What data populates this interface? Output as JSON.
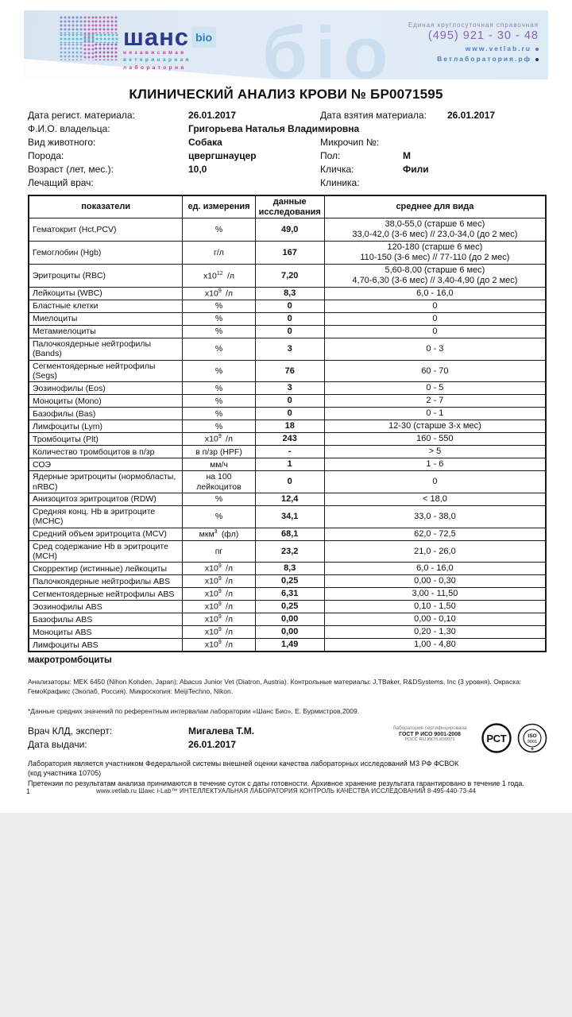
{
  "header": {
    "watermark": "бio",
    "brand": {
      "name": "шанс",
      "bio": "bio",
      "tagline1": "независимая",
      "tagline2": "ветеринарная",
      "tagline3": "лаборатория"
    },
    "contact": {
      "hotline_label": "Единая круглосуточная справочная",
      "phone": "(495)  921 - 30 - 48",
      "site1": "www.vetlab.ru",
      "site2": "Ветлаборатория.рф"
    }
  },
  "title": "КЛИНИЧЕСКИЙ АНАЛИЗ КРОВИ  № БР0071595",
  "info": {
    "left": [
      {
        "label": "Дата регист. материала:",
        "value": "26.01.2017"
      },
      {
        "label": "Ф.И.О. владельца:",
        "value": "Григорьева Наталья Владимировна"
      },
      {
        "label": "Вид животного:",
        "value": "Собака"
      },
      {
        "label": "Порода:",
        "value": "цвергшнауцер"
      },
      {
        "label": "Возраст (лет, мес.):",
        "value": "10,0"
      },
      {
        "label": "Лечащий врач:",
        "value": ""
      }
    ],
    "right": [
      {
        "label": "Дата взятия материала:",
        "value": "26.01.2017"
      },
      {
        "label": "",
        "value": ""
      },
      {
        "label": "Микрочип №:",
        "value": ""
      },
      {
        "label": "Пол:",
        "value": "М"
      },
      {
        "label": "Кличка:",
        "value": "Фили"
      },
      {
        "label": "Клиника:",
        "value": ""
      }
    ]
  },
  "table": {
    "headers": [
      "показатели",
      "ед. измерения",
      "данные исследования",
      "среднее для вида"
    ],
    "rows": [
      {
        "name": "Гематокрит (Hct,PCV)",
        "unit": {
          "base": "%"
        },
        "value": "49,0",
        "range": "38,0-55,0 (старше 6 мес)\n33,0-42,0 (3-6 мес)  //  23,0-34,0 (до 2 мес)"
      },
      {
        "name": "Гемоглобин (Hgb)",
        "unit": {
          "base": "г/л"
        },
        "value": "167",
        "range": "120-180 (старше 6 мес)\n110-150 (3-6 мес)  //  77-110  (до 2 мес)"
      },
      {
        "name": "Эритроциты (RBC)",
        "unit": {
          "base": "х10",
          "sup": "12",
          "rest": "/л"
        },
        "value": "7,20",
        "range": "5,60-8,00 (старше 6 мес)\n4,70-6,30 (3-6 мес)  //  3,40-4,90 (до 2 мес)"
      },
      {
        "name": "Лейкоциты (WBC)",
        "unit": {
          "base": "х10",
          "sup": "9",
          "rest": "/л"
        },
        "value": "8,3",
        "range": "6,0 - 16,0"
      },
      {
        "name": "Бластные клетки",
        "unit": {
          "base": "%"
        },
        "value": "0",
        "range": "0"
      },
      {
        "name": "Миелоциты",
        "unit": {
          "base": "%"
        },
        "value": "0",
        "range": "0"
      },
      {
        "name": "Метамиелоциты",
        "unit": {
          "base": "%"
        },
        "value": "0",
        "range": "0"
      },
      {
        "name": "Палочкоядерные нейтрофилы (Bands)",
        "unit": {
          "base": "%"
        },
        "value": "3",
        "range": "0 - 3"
      },
      {
        "name": "Сегментоядерные нейтрофилы (Segs)",
        "unit": {
          "base": "%"
        },
        "value": "76",
        "range": "60 - 70"
      },
      {
        "name": "Эозинофилы (Eos)",
        "unit": {
          "base": "%"
        },
        "value": "3",
        "range": "0 - 5"
      },
      {
        "name": "Моноциты (Mono)",
        "unit": {
          "base": "%"
        },
        "value": "0",
        "range": "2 - 7"
      },
      {
        "name": "Базофилы (Bas)",
        "unit": {
          "base": "%"
        },
        "value": "0",
        "range": "0 - 1"
      },
      {
        "name": "Лимфоциты (Lym)",
        "unit": {
          "base": "%"
        },
        "value": "18",
        "range": "12-30 (старше 3-х мес)"
      },
      {
        "name": "Тромбоциты (Plt)",
        "unit": {
          "base": "х10",
          "sup": "9",
          "rest": "/л"
        },
        "value": "243",
        "range": "160 - 550"
      },
      {
        "name": "Количество тромбоцитов в п/зр",
        "unit": {
          "base": "в п/зр (HPF)"
        },
        "value": "-",
        "range": "> 5"
      },
      {
        "name": "СОЭ",
        "unit": {
          "base": "мм/ч"
        },
        "value": "1",
        "range": "1 - 6"
      },
      {
        "name": "Ядерные эритроциты (нормобласты, nRBC)",
        "unit": {
          "base": "на 100 лейкоцитов"
        },
        "value": "0",
        "range": "0"
      },
      {
        "name": "Анизоцитоз эритроцитов (RDW)",
        "unit": {
          "base": "%"
        },
        "value": "12,4",
        "range": "< 18,0"
      },
      {
        "name": "Средняя конц. Hb в эритроците (MCHC)",
        "unit": {
          "base": "%"
        },
        "value": "34,1",
        "range": "33,0 - 38,0"
      },
      {
        "name": "Средний объем эритроцита (MCV)",
        "unit": {
          "base": "мкм",
          "sup": "3",
          "rest": "(фл)"
        },
        "value": "68,1",
        "range": "62,0 - 72,5"
      },
      {
        "name": "Сред содержание Hb в эритроците (MCH)",
        "unit": {
          "base": "пг"
        },
        "value": "23,2",
        "range": "21,0 - 26,0"
      },
      {
        "name": "Скорректир (истинные) лейкоциты",
        "unit": {
          "base": "х10",
          "sup": "9",
          "rest": "/л"
        },
        "value": "8,3",
        "range": "6,0 - 16,0"
      },
      {
        "name": "Палочкоядерные нейтрофилы ABS",
        "unit": {
          "base": "х10",
          "sup": "9",
          "rest": "/л"
        },
        "value": "0,25",
        "range": "0,00 - 0,30"
      },
      {
        "name": "Сегментоядерные нейтрофилы ABS",
        "unit": {
          "base": "х10",
          "sup": "9",
          "rest": "/л"
        },
        "value": "6,31",
        "range": "3,00 - 11,50"
      },
      {
        "name": "Эозинофилы ABS",
        "unit": {
          "base": "х10",
          "sup": "9",
          "rest": "/л"
        },
        "value": "0,25",
        "range": "0,10 - 1,50"
      },
      {
        "name": "Базофилы ABS",
        "unit": {
          "base": "х10",
          "sup": "9",
          "rest": "/л"
        },
        "value": "0,00",
        "range": "0,00 - 0,10"
      },
      {
        "name": "Моноциты ABS",
        "unit": {
          "base": "х10",
          "sup": "9",
          "rest": "/л"
        },
        "value": "0,00",
        "range": "0,20 - 1,30"
      },
      {
        "name": "Лимфоциты ABS",
        "unit": {
          "base": "х10",
          "sup": "9",
          "rest": "/л"
        },
        "value": "1,49",
        "range": "1,00 - 4,80"
      }
    ]
  },
  "note_bold": "макротромбоциты",
  "footer": {
    "analyzers": "Анализаторы: MEK 6450 (Nihon Kohden, Japan); Abacus Junior Vet (Diatron, Austria). Контрольные материалы: J,TBaker, R&DSystems, Inc (3 уровня). Окраска: ГемоКрафикс (Эколаб, Россия). Микроскопия: MeijiTechno, Nikon.",
    "ref_note": "*Данные средних значений по референтным интервалам лаборатории «Шанс Био», Е. Бурмистров,2009.",
    "doctor_label": "Врач КЛД, эксперт:",
    "doctor_name": "Мигалева Т.М.",
    "issue_label": "Дата выдачи:",
    "issue_date": "26.01.2017",
    "cert_line1": "Лаборатория сертифицирована",
    "cert_line2": "ГОСТ Р ИСО 9001-2008",
    "cert_line3": "РОСС RU.ИК76.К00071",
    "stamp_rst": "РСТ",
    "stamp_iso1": "ISO",
    "stamp_iso2": "9001",
    "participation": "Лаборатория является участником Федеральной системы внешней оценки качества лабораторных исследований МЗ РФ ФСВОК\n(код участника 10705)",
    "claims": "Претензии по результатам анализа принимаются в течение суток с даты готовности. Архивное хранение результата гарантировано в течение 1 года."
  },
  "page_footer": {
    "page": "1",
    "text": "www.vetlab.ru Шанс i-Lab™ ИНТЕЛЛЕКТУАЛЬНАЯ ЛАБОРАТОРИЯ КОНТРОЛЬ КАЧЕСТВА ИССЛЕДОВАНИЙ 8-495-440-73-44"
  }
}
